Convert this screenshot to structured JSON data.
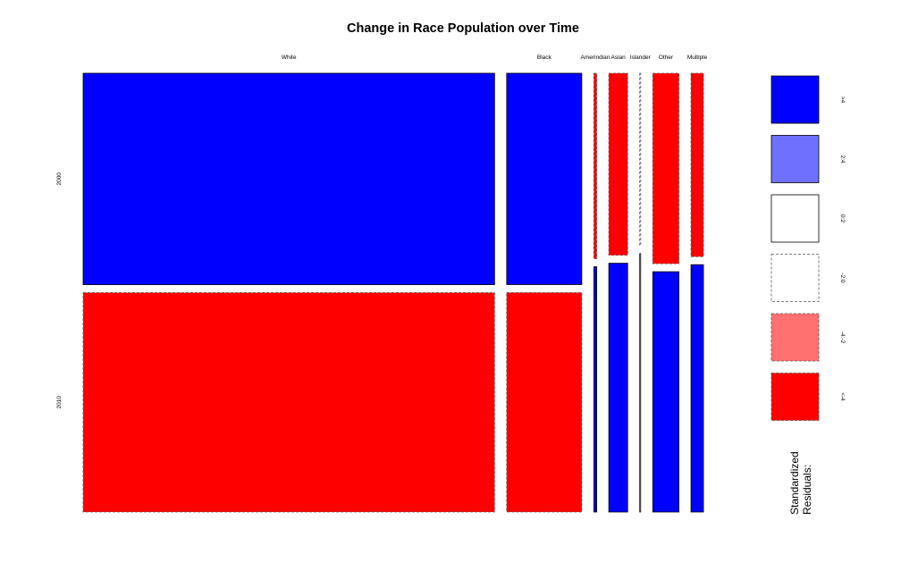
{
  "chart_data": {
    "type": "mosaic",
    "title": "Change in Race Population over Time",
    "categories": [
      "White",
      "Black",
      "Amerindian",
      "Asian",
      "Islander",
      "Other",
      "Multiple"
    ],
    "column_shares": [
      0.7263,
      0.1326,
      0.0051,
      0.0333,
      0.0017,
      0.0462,
      0.022
    ],
    "rows": [
      "2000",
      "2010"
    ],
    "row_share_2000": [
      0.4908,
      0.4906,
      0.4306,
      0.4224,
      0.4,
      0.4421,
      0.4258
    ],
    "residual_class": [
      [
        ">4",
        "<-4"
      ],
      [
        ">4",
        "<-4"
      ],
      [
        "<-4",
        ">4"
      ],
      [
        "<-4",
        ">4"
      ],
      [
        "-2:0",
        "0:2"
      ],
      [
        "<-4",
        ">4"
      ],
      [
        "<-4",
        ">4"
      ]
    ],
    "legend": {
      "title_line1": "Standardized",
      "title_line2": "Residuals:",
      "placement": "right",
      "entries": [
        {
          "label": ">4",
          "color": "#0000ff",
          "dashed": false
        },
        {
          "label": "2:4",
          "color": "#7070ff",
          "dashed": false
        },
        {
          "label": "0:2",
          "color": "#ffffff",
          "dashed": false
        },
        {
          "label": "-2:0",
          "color": "#ffffff",
          "dashed": true
        },
        {
          "label": "-4:-2",
          "color": "#ff7070",
          "dashed": true
        },
        {
          "label": "<-4",
          "color": "#ff0000",
          "dashed": true
        }
      ]
    }
  }
}
